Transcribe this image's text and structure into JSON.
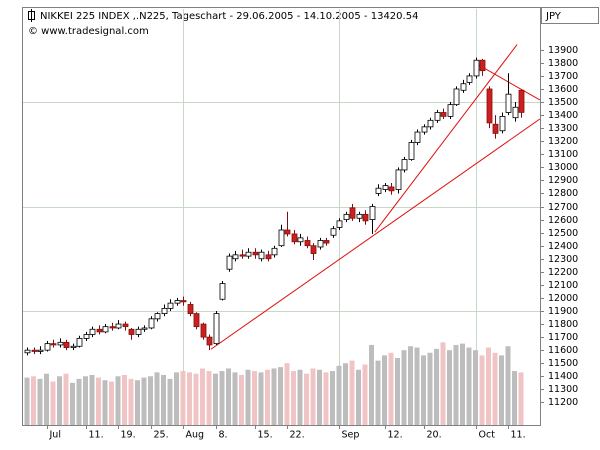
{
  "chart_data": {
    "type": "candlestick",
    "title": "NIKKEI 225 INDEX ,.N225, Tageschart - 29.06.2005 - 14.10.2005 - 13420.54",
    "subtitle": "© www.tradesignal.com",
    "currency": "JPY",
    "categories": [
      null,
      null,
      null,
      "Jul",
      null,
      null,
      null,
      null,
      null,
      "11.",
      null,
      null,
      null,
      null,
      "19.",
      null,
      null,
      null,
      null,
      "25.",
      null,
      null,
      null,
      null,
      "Aug",
      null,
      null,
      null,
      null,
      "8.",
      null,
      null,
      null,
      null,
      null,
      "15.",
      null,
      null,
      null,
      null,
      "22.",
      null,
      null,
      null,
      null,
      null,
      null,
      null,
      "Sep",
      null,
      null,
      null,
      null,
      null,
      null,
      "12.",
      null,
      null,
      null,
      null,
      null,
      "20.",
      null,
      null,
      null,
      null,
      null,
      null,
      null,
      "Oct",
      null,
      null,
      null,
      null,
      "11.",
      null,
      null
    ],
    "open": [
      11580,
      11600,
      11590,
      11600,
      11650,
      11640,
      11660,
      11620,
      11630,
      11690,
      11720,
      11760,
      11740,
      11780,
      11770,
      11800,
      11760,
      11720,
      11760,
      11770,
      11840,
      11880,
      11920,
      11960,
      11980,
      11950,
      11880,
      11800,
      11700,
      11650,
      11990,
      12220,
      12300,
      12330,
      12320,
      12350,
      12300,
      12330,
      12330,
      12400,
      12520,
      12490,
      12430,
      12440,
      12400,
      12390,
      12440,
      12480,
      12540,
      12600,
      12690,
      12610,
      12640,
      12600,
      12800,
      12830,
      12850,
      12830,
      12980,
      13060,
      13190,
      13270,
      13310,
      13360,
      13420,
      13390,
      13480,
      13590,
      13650,
      13700,
      13820,
      13600,
      13330,
      13280,
      13420,
      13380,
      13590
    ],
    "high": [
      11620,
      11620,
      11630,
      11670,
      11680,
      11690,
      11680,
      11650,
      11710,
      11740,
      11780,
      11790,
      11800,
      11810,
      11830,
      11820,
      11770,
      11780,
      11790,
      11860,
      11890,
      11950,
      11990,
      12000,
      12010,
      11970,
      11890,
      11810,
      11720,
      11900,
      12130,
      12340,
      12360,
      12370,
      12380,
      12380,
      12370,
      12360,
      12400,
      12560,
      12660,
      12520,
      12490,
      12470,
      12420,
      12460,
      12460,
      12550,
      12610,
      12660,
      12720,
      12660,
      12670,
      12720,
      12870,
      12880,
      12880,
      13000,
      13080,
      13210,
      13290,
      13330,
      13380,
      13440,
      13450,
      13500,
      13620,
      13670,
      13720,
      13840,
      13830,
      13620,
      13400,
      13420,
      13720,
      13500,
      13600
    ],
    "low": [
      11560,
      11570,
      11570,
      11590,
      11620,
      11620,
      11600,
      11600,
      11620,
      11670,
      11700,
      11720,
      11730,
      11750,
      11760,
      11750,
      11680,
      11700,
      11740,
      11760,
      11820,
      11860,
      11900,
      11940,
      11940,
      11860,
      11760,
      11680,
      11600,
      11640,
      11980,
      12200,
      12280,
      12300,
      12300,
      12300,
      12280,
      12280,
      12310,
      12390,
      12470,
      12410,
      12400,
      12380,
      12290,
      12370,
      12400,
      12460,
      12520,
      12580,
      12590,
      12580,
      12560,
      12490,
      12780,
      12810,
      12790,
      12800,
      12960,
      13050,
      13170,
      13250,
      13290,
      13340,
      13370,
      13370,
      13470,
      13570,
      13630,
      13680,
      13700,
      13300,
      13220,
      13260,
      13400,
      13350,
      13380
    ],
    "close": [
      11600,
      11590,
      11600,
      11650,
      11640,
      11660,
      11620,
      11630,
      11690,
      11720,
      11760,
      11740,
      11780,
      11770,
      11800,
      11780,
      11720,
      11760,
      11770,
      11840,
      11880,
      11920,
      11960,
      11980,
      11970,
      11880,
      11780,
      11700,
      11640,
      11880,
      12110,
      12320,
      12330,
      12320,
      12350,
      12330,
      12350,
      12300,
      12380,
      12520,
      12490,
      12430,
      12460,
      12400,
      12340,
      12440,
      12420,
      12530,
      12590,
      12640,
      12610,
      12640,
      12590,
      12700,
      12840,
      12860,
      12820,
      12980,
      13060,
      13190,
      13270,
      13310,
      13360,
      13420,
      13390,
      13480,
      13600,
      13640,
      13700,
      13820,
      13740,
      13340,
      13260,
      13390,
      13560,
      13460,
      13420.54
    ],
    "volume": [
      11390,
      11400,
      11380,
      11420,
      11360,
      11400,
      11420,
      11350,
      11380,
      11400,
      11410,
      11390,
      11370,
      11360,
      11400,
      11410,
      11380,
      11370,
      11390,
      11400,
      11430,
      11410,
      11380,
      11430,
      11440,
      11430,
      11420,
      11460,
      11440,
      11420,
      11440,
      11460,
      11430,
      11410,
      11450,
      11440,
      11430,
      11450,
      11460,
      11470,
      11500,
      11440,
      11450,
      11420,
      11460,
      11450,
      11430,
      11440,
      11480,
      11500,
      11520,
      11450,
      11490,
      11640,
      11520,
      11560,
      11580,
      11540,
      11600,
      11630,
      11620,
      11560,
      11580,
      11610,
      11660,
      11600,
      11640,
      11650,
      11620,
      11600,
      11560,
      11620,
      11580,
      11560,
      11630,
      11440,
      11430
    ],
    "up_color": "#ffffff",
    "down_color": "#cc2020",
    "volume_up_color": "#bdbdbd",
    "volume_down_color": "#f0c4c4",
    "trendlines": [
      {
        "x": [
          28.3,
          78.9
        ],
        "y": [
          11607,
          13370
        ]
      },
      {
        "x": [
          53.5,
          75.4
        ],
        "y": [
          12504,
          13940
        ]
      },
      {
        "x": [
          68.9,
          78.9
        ],
        "y": [
          13800,
          13516
        ]
      }
    ],
    "trendline_color": "#e01010",
    "ylim": [
      11050,
      14220
    ],
    "yticks": [
      11200,
      11300,
      11400,
      11500,
      11600,
      11700,
      11800,
      11900,
      12000,
      12100,
      12200,
      12300,
      12400,
      12500,
      12600,
      12700,
      12800,
      12900,
      13000,
      13100,
      13200,
      13300,
      13400,
      13500,
      13600,
      13700,
      13800,
      13900
    ],
    "grid_y": [
      11900,
      12700,
      13500
    ],
    "grid_x": [
      24,
      48,
      69
    ]
  }
}
